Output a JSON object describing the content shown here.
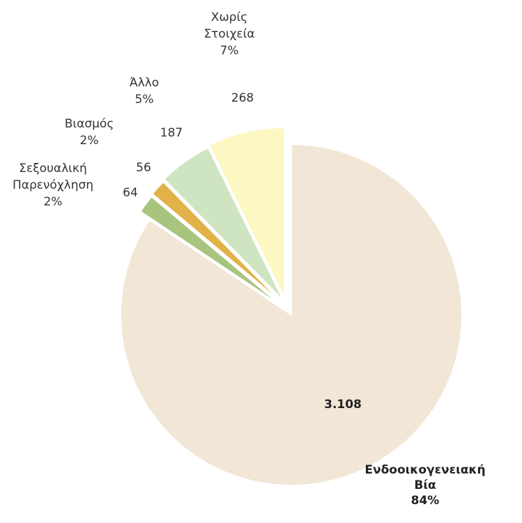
{
  "chart_data": {
    "type": "pie",
    "title": "",
    "slices": [
      {
        "key": "endo",
        "label_lines": [
          "Ενδοοικογενειακή",
          "Βία"
        ],
        "value": 3108,
        "value_label": "3.108",
        "percent_label": "84%",
        "color": "#f2e6d6",
        "exploded": false,
        "bold": true
      },
      {
        "key": "sex",
        "label_lines": [
          "Σεξουαλική",
          "Παρενόχληση"
        ],
        "value": 64,
        "value_label": "64",
        "percent_label": "2%",
        "color": "#a9c47f",
        "exploded": true,
        "bold": false
      },
      {
        "key": "rape",
        "label_lines": [
          "Βιασμός"
        ],
        "value": 56,
        "value_label": "56",
        "percent_label": "2%",
        "color": "#e0b247",
        "exploded": true,
        "bold": false
      },
      {
        "key": "other",
        "label_lines": [
          "Άλλο"
        ],
        "value": 187,
        "value_label": "187",
        "percent_label": "5%",
        "color": "#cfe5c1",
        "exploded": true,
        "bold": false
      },
      {
        "key": "none",
        "label_lines": [
          "Χωρίς",
          "Στοιχεία"
        ],
        "value": 268,
        "value_label": "268",
        "percent_label": "7%",
        "color": "#fdf7c4",
        "exploded": true,
        "bold": false
      }
    ]
  }
}
